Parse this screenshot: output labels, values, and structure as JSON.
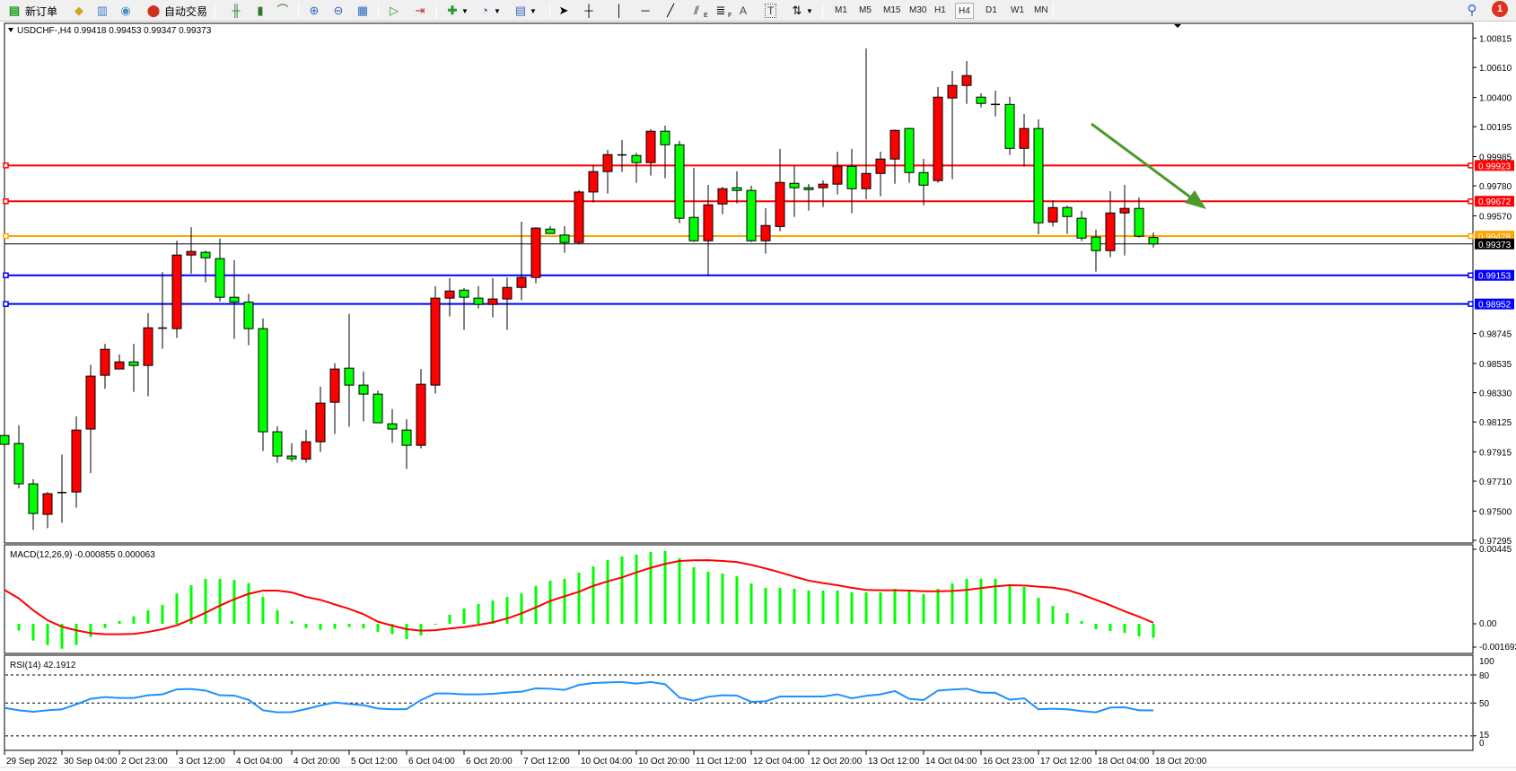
{
  "toolbar": {
    "new_order": "新订单",
    "auto_trading": "自动交易",
    "icons": [
      "new-order-icon",
      "gold-icon",
      "history-icon",
      "signal-icon",
      "auto-trading-icon",
      "bar-chart-icon",
      "candlestick-icon",
      "line-chart-icon",
      "zoom-in-icon",
      "zoom-out-icon",
      "tile-windows-icon",
      "auto-scroll-icon",
      "chart-shift-icon",
      "new-chart-icon",
      "clock-icon",
      "template-icon",
      "cursor-icon",
      "crosshair-icon",
      "vertical-line-icon",
      "horizontal-line-icon",
      "trendline-icon",
      "fibonacci-icon",
      "fibonacci-fan-icon",
      "text-icon",
      "text-label-icon",
      "arrows-icon",
      "search-icon",
      "notifications-icon"
    ],
    "fibo_e": "E",
    "fibo_f": "F",
    "text_a": "A",
    "text_t": "T",
    "timeframes": [
      "M1",
      "M5",
      "M15",
      "M30",
      "H1",
      "H4",
      "D1",
      "W1",
      "MN"
    ],
    "active_timeframe": "H4",
    "notification_count": "1"
  },
  "chart": {
    "symbol_header": "USDCHF-,H4  0.99418 0.99453 0.99347 0.99373",
    "colors": {
      "bull": "#ff0000",
      "bear": "#00ff00",
      "macd_hist": "#00ff00",
      "macd_signal": "#ff0000",
      "rsi": "#1e90ff"
    }
  },
  "chart_data": [
    {
      "type": "candlestick",
      "title": "USDCHF-,H4",
      "ohlc_header": [
        "0.99418",
        "0.99453",
        "0.99347",
        "0.99373"
      ],
      "ylim": [
        0.97295,
        1.00815
      ],
      "y_ticks": [
        "1.00815",
        "1.00610",
        "1.00400",
        "1.00195",
        "0.99985",
        "0.99780",
        "0.99570",
        "0.98745",
        "0.98535",
        "0.98330",
        "0.98125",
        "0.97915",
        "0.97710",
        "0.97500",
        "0.97295"
      ],
      "x_tick_labels": [
        "29 Sep 2022",
        "30 Sep 04:00",
        "2 Oct 23:00",
        "3 Oct 12:00",
        "4 Oct 04:00",
        "4 Oct 20:00",
        "5 Oct 12:00",
        "6 Oct 04:00",
        "6 Oct 20:00",
        "7 Oct 12:00",
        "10 Oct 04:00",
        "10 Oct 20:00",
        "11 Oct 12:00",
        "12 Oct 04:00",
        "12 Oct 20:00",
        "13 Oct 12:00",
        "14 Oct 04:00",
        "16 Oct 23:00",
        "17 Oct 12:00",
        "18 Oct 04:00",
        "18 Oct 20:00"
      ],
      "x_tick_every_bars": 4,
      "horizontal_lines": [
        {
          "price": "0.99923",
          "color": "#ff0000"
        },
        {
          "price": "0.99672",
          "color": "#ff0000"
        },
        {
          "price": "0.99428",
          "color": "#ffa500"
        },
        {
          "price": "0.99153",
          "color": "#0000ff"
        },
        {
          "price": "0.98952",
          "color": "#0000ff"
        }
      ],
      "current_price": {
        "price": "0.99373",
        "color": "#000000"
      },
      "candles": [
        [
          0.9803,
          0.98548,
          0.97825,
          0.97968
        ],
        [
          0.97974,
          0.98102,
          0.97659,
          0.97691
        ],
        [
          0.97691,
          0.97724,
          0.97368,
          0.97483
        ],
        [
          0.97477,
          0.97634,
          0.9738,
          0.97622
        ],
        [
          0.97622,
          0.97896,
          0.97418,
          0.9763
        ],
        [
          0.97634,
          0.98164,
          0.97525,
          0.98068
        ],
        [
          0.98075,
          0.98525,
          0.97766,
          0.98446
        ],
        [
          0.98452,
          0.98672,
          0.98358,
          0.98634
        ],
        [
          0.98496,
          0.98598,
          0.98496,
          0.98546
        ],
        [
          0.98546,
          0.98672,
          0.98336,
          0.98521
        ],
        [
          0.98521,
          0.98888,
          0.98305,
          0.98785
        ],
        [
          0.98785,
          0.99175,
          0.98638,
          0.98783
        ],
        [
          0.98779,
          0.99395,
          0.98714,
          0.99295
        ],
        [
          0.99295,
          0.9949,
          0.99165,
          0.9932
        ],
        [
          0.99314,
          0.99326,
          0.99104,
          0.99276
        ],
        [
          0.9927,
          0.9941,
          0.9897,
          0.98999
        ],
        [
          0.98999,
          0.99259,
          0.98707,
          0.98965
        ],
        [
          0.98965,
          0.99024,
          0.98663,
          0.98779
        ],
        [
          0.98779,
          0.9885,
          0.97921,
          0.98056
        ],
        [
          0.98056,
          0.98095,
          0.97839,
          0.97886
        ],
        [
          0.97886,
          0.97976,
          0.97846,
          0.97867
        ],
        [
          0.97864,
          0.9807,
          0.97839,
          0.97986
        ],
        [
          0.97986,
          0.98372,
          0.97915,
          0.98257
        ],
        [
          0.98263,
          0.98536,
          0.98041,
          0.98496
        ],
        [
          0.98502,
          0.98882,
          0.98091,
          0.98383
        ],
        [
          0.98383,
          0.98479,
          0.98129,
          0.9832
        ],
        [
          0.9832,
          0.98345,
          0.98119,
          0.98119
        ],
        [
          0.98112,
          0.98215,
          0.97978,
          0.98075
        ],
        [
          0.98068,
          0.98144,
          0.97795,
          0.97961
        ],
        [
          0.97961,
          0.98496,
          0.9794,
          0.98389
        ],
        [
          0.98383,
          0.99077,
          0.98324,
          0.98993
        ],
        [
          0.98993,
          0.99133,
          0.98865,
          0.99043
        ],
        [
          0.99049,
          0.99064,
          0.9877,
          0.98999
        ],
        [
          0.98993,
          0.99077,
          0.98921,
          0.98949
        ],
        [
          0.98949,
          0.99133,
          0.98858,
          0.98987
        ],
        [
          0.98987,
          0.99139,
          0.9877,
          0.99068
        ],
        [
          0.99068,
          0.99529,
          0.98978,
          0.99138
        ],
        [
          0.99138,
          0.9949,
          0.99097,
          0.99484
        ],
        [
          0.99477,
          0.99498,
          0.99446,
          0.99446
        ],
        [
          0.99435,
          0.99498,
          0.99311,
          0.99383
        ],
        [
          0.99383,
          0.9975,
          0.9937,
          0.99737
        ],
        [
          0.99737,
          0.99926,
          0.99663,
          0.9988
        ],
        [
          0.9988,
          1.00033,
          0.99726,
          0.99999
        ],
        [
          0.99999,
          1.00102,
          0.99877,
          0.99997
        ],
        [
          0.99993,
          1.00012,
          0.99802,
          0.99943
        ],
        [
          0.99943,
          1.00177,
          0.99852,
          1.00163
        ],
        [
          1.00163,
          1.00202,
          0.99833,
          1.00068
        ],
        [
          1.00068,
          1.00096,
          0.99519,
          0.99553
        ],
        [
          0.99559,
          0.99907,
          0.99387,
          0.99395
        ],
        [
          0.99395,
          0.99787,
          0.9915,
          0.99647
        ],
        [
          0.99653,
          0.99773,
          0.99582,
          0.9976
        ],
        [
          0.99767,
          0.99882,
          0.99657,
          0.99748
        ],
        [
          0.99748,
          0.99781,
          0.99387,
          0.99395
        ],
        [
          0.99395,
          0.99624,
          0.99305,
          0.99502
        ],
        [
          0.99495,
          1.00039,
          0.99462,
          0.99804
        ],
        [
          0.99798,
          0.99919,
          0.99563,
          0.99767
        ],
        [
          0.99767,
          0.99794,
          0.99607,
          0.99754
        ],
        [
          0.99767,
          0.99819,
          0.99632,
          0.99792
        ],
        [
          0.99792,
          1.0002,
          0.9972,
          0.99917
        ],
        [
          0.99917,
          1.00039,
          0.99588,
          0.9976
        ],
        [
          0.9976,
          1.00743,
          0.99685,
          0.99867
        ],
        [
          0.99867,
          1.0002,
          0.99707,
          0.99968
        ],
        [
          0.99968,
          1.00175,
          0.99795,
          1.00169
        ],
        [
          1.00182,
          1.00188,
          0.99802,
          0.99873
        ],
        [
          0.99873,
          0.9997,
          0.99644,
          0.99785
        ],
        [
          0.99817,
          1.00473,
          0.99802,
          1.00402
        ],
        [
          1.00396,
          1.00586,
          0.99827,
          1.00484
        ],
        [
          1.00484,
          1.00655,
          1.00355,
          1.00553
        ],
        [
          1.00402,
          1.00429,
          1.0033,
          1.00358
        ],
        [
          1.00358,
          1.00448,
          1.00267,
          1.00351
        ],
        [
          1.00351,
          1.00404,
          0.99997,
          1.00043
        ],
        [
          1.00043,
          1.00284,
          0.99915,
          1.00182
        ],
        [
          1.00182,
          1.00246,
          0.99441,
          0.99521
        ],
        [
          0.99527,
          0.99678,
          0.99494,
          0.99628
        ],
        [
          0.99628,
          0.99641,
          0.99443,
          0.99565
        ],
        [
          0.99553,
          0.99605,
          0.99393,
          0.99414
        ],
        [
          0.99421,
          0.99473,
          0.99179,
          0.99326
        ],
        [
          0.99326,
          0.99743,
          0.9928,
          0.9959
        ],
        [
          0.9959,
          0.99787,
          0.99292,
          0.99622
        ],
        [
          0.99622,
          0.99699,
          0.99418,
          0.99427
        ],
        [
          0.99418,
          0.99453,
          0.99347,
          0.99373
        ]
      ]
    },
    {
      "type": "bar",
      "title": "MACD(12,26,9) -0.000855 0.000063",
      "ylim": [
        -0.001693,
        0.00445
      ],
      "y_ticks": [
        "0.00445",
        "0.00",
        "-0.001693"
      ],
      "series": [
        {
          "name": "MACD",
          "type": "bar",
          "values": [
            0,
            -0.00042,
            -0.00103,
            -0.0013,
            -0.00153,
            -0.0013,
            -0.00081,
            -0.00026,
            0.00017,
            0.00046,
            0.00083,
            0.00116,
            0.00187,
            0.00237,
            0.00276,
            0.00276,
            0.0027,
            0.0025,
            0.00165,
            0.00083,
            0.00017,
            -0.00026,
            -0.00037,
            -0.00031,
            -0.0002,
            -0.00028,
            -0.0005,
            -0.00064,
            -0.00094,
            -0.00072,
            -2e-05,
            0.00055,
            0.00094,
            0.00121,
            0.00143,
            0.00165,
            0.00187,
            0.00233,
            0.00265,
            0.00276,
            0.00314,
            0.00353,
            0.00392,
            0.00414,
            0.00425,
            0.00441,
            0.00447,
            0.00403,
            0.00347,
            0.0032,
            0.00309,
            0.00292,
            0.00248,
            0.00221,
            0.00221,
            0.00215,
            0.00204,
            0.00204,
            0.00204,
            0.00193,
            0.00193,
            0.00193,
            0.00215,
            0.00199,
            0.00182,
            0.00215,
            0.00248,
            0.00276,
            0.00276,
            0.00276,
            0.00243,
            0.00226,
            0.0016,
            0.0011,
            0.00066,
            0.00017,
            -0.00033,
            -0.00044,
            -0.00055,
            -0.00077,
            -0.000855
          ]
        },
        {
          "name": "Signal",
          "type": "line",
          "values": [
            0.00208,
            0.00156,
            0.00083,
            0.00022,
            -0.00018,
            -0.0004,
            -0.00057,
            -0.00064,
            -0.00064,
            -0.00062,
            -0.0005,
            -0.00033,
            -9e-05,
            0.00028,
            0.00068,
            0.00112,
            0.00151,
            0.00184,
            0.00204,
            0.00204,
            0.00193,
            0.00165,
            0.00147,
            0.00119,
            0.00092,
            0.00059,
            0.00013,
            -0.00011,
            -0.00033,
            -0.00042,
            -0.00039,
            -0.00029,
            -0.0002,
            -7e-05,
            9e-05,
            0.00033,
            0.00064,
            0.00101,
            0.0014,
            0.00169,
            0.00197,
            0.00233,
            0.00261,
            0.00285,
            0.00316,
            0.00344,
            0.00368,
            0.00386,
            0.0039,
            0.00391,
            0.00386,
            0.0038,
            0.00362,
            0.0034,
            0.00316,
            0.0029,
            0.00265,
            0.0025,
            0.00237,
            0.00221,
            0.00208,
            0.00206,
            0.00206,
            0.00204,
            0.002,
            0.002,
            0.00202,
            0.00208,
            0.00219,
            0.0023,
            0.00237,
            0.00235,
            0.00228,
            0.00222,
            0.00208,
            0.0018,
            0.00147,
            0.00114,
            0.00077,
            0.00044,
            6.3e-05
          ]
        }
      ]
    },
    {
      "type": "line",
      "title": "RSI(14) 42.1912",
      "ylim": [
        0,
        100
      ],
      "y_ticks": [
        "100",
        "80",
        "50",
        "15",
        "0"
      ],
      "levels": [
        80,
        50,
        15
      ],
      "values": [
        44.9,
        42.3,
        40.7,
        42.3,
        43.3,
        48.7,
        54.5,
        56.4,
        55.4,
        55.4,
        58.3,
        59.3,
        64.7,
        65.0,
        63.4,
        58.3,
        58.0,
        53.5,
        42.3,
        40.1,
        40.4,
        43.6,
        47.4,
        50.6,
        49.0,
        47.8,
        44.2,
        43.3,
        43.6,
        53.2,
        60.2,
        60.2,
        59.3,
        59.3,
        59.9,
        61.2,
        62.1,
        65.7,
        65.3,
        64.1,
        69.3,
        71.4,
        72.0,
        72.4,
        70.8,
        72.4,
        70.1,
        55.8,
        52.6,
        56.7,
        58.3,
        58.0,
        51.3,
        51.9,
        57.0,
        57.0,
        57.0,
        57.0,
        59.3,
        55.1,
        57.7,
        59.3,
        62.8,
        54.5,
        53.2,
        63.4,
        64.4,
        65.3,
        61.2,
        60.9,
        53.5,
        55.1,
        43.3,
        43.9,
        43.3,
        41.4,
        40.1,
        45.2,
        45.5,
        42.3,
        42.1912
      ]
    }
  ]
}
